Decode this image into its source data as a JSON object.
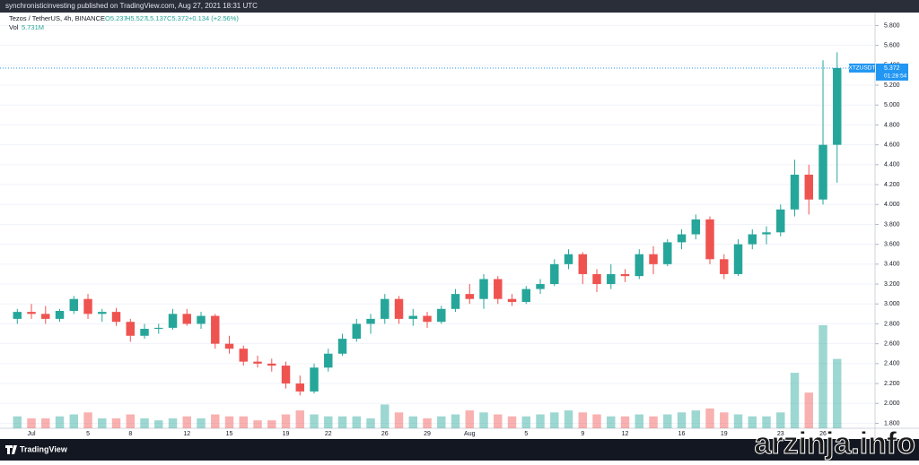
{
  "header": {
    "publisher": "synchronisticinvesting published on TradingView.com, Aug 27, 2021 18:31 UTC"
  },
  "chart_data": {
    "type": "candlestick",
    "symbol": "Tezos / TetherUS, 4h, BINANCE",
    "ohlc_legend": [
      "O5.237",
      "H5.527",
      "L5.137",
      "C5.372",
      "+0.134 (+2.56%)"
    ],
    "volume_legend": "Vol",
    "volume_value": "5.731M",
    "last_price_label": {
      "ticker": "XTZUSDT",
      "price": 5.372,
      "countdown": "01:28:54"
    },
    "categories": [
      null,
      "Jul",
      null,
      null,
      null,
      "5",
      null,
      null,
      "8",
      null,
      null,
      null,
      "12",
      null,
      null,
      "15",
      null,
      null,
      null,
      "19",
      null,
      null,
      "22",
      null,
      null,
      null,
      "26",
      null,
      null,
      "29",
      null,
      null,
      "Aug",
      null,
      null,
      null,
      "5",
      null,
      null,
      null,
      "9",
      null,
      null,
      "12",
      null,
      null,
      null,
      "16",
      null,
      null,
      "19",
      null,
      null,
      null,
      "23",
      null,
      null,
      "26",
      null
    ],
    "open": [
      2.85,
      2.92,
      2.9,
      2.85,
      2.93,
      3.05,
      2.9,
      2.92,
      2.82,
      2.68,
      2.75,
      2.76,
      2.9,
      2.8,
      2.88,
      2.6,
      2.55,
      2.42,
      2.4,
      2.38,
      2.2,
      2.12,
      2.36,
      2.5,
      2.65,
      2.8,
      2.85,
      3.05,
      2.85,
      2.88,
      2.82,
      2.95,
      3.1,
      3.05,
      3.25,
      3.05,
      3.02,
      3.15,
      3.2,
      3.4,
      3.5,
      3.3,
      3.2,
      3.3,
      3.28,
      3.5,
      3.4,
      3.62,
      3.7,
      3.85,
      3.45,
      3.3,
      3.6,
      3.7,
      3.72,
      3.95,
      4.3,
      4.05,
      4.6
    ],
    "high": [
      2.95,
      3.0,
      2.98,
      2.95,
      3.08,
      3.1,
      2.95,
      2.96,
      2.85,
      2.8,
      2.8,
      2.95,
      2.95,
      2.92,
      2.9,
      2.68,
      2.58,
      2.48,
      2.45,
      2.42,
      2.28,
      2.4,
      2.55,
      2.7,
      2.85,
      2.9,
      3.1,
      3.08,
      2.95,
      2.92,
      2.98,
      3.15,
      3.2,
      3.3,
      3.28,
      3.1,
      3.18,
      3.25,
      3.45,
      3.55,
      3.52,
      3.35,
      3.4,
      3.35,
      3.55,
      3.58,
      3.65,
      3.75,
      3.9,
      3.88,
      3.5,
      3.65,
      3.75,
      3.78,
      4.0,
      4.45,
      4.4,
      5.45,
      5.53
    ],
    "low": [
      2.8,
      2.85,
      2.8,
      2.82,
      2.9,
      2.85,
      2.82,
      2.78,
      2.62,
      2.65,
      2.7,
      2.74,
      2.78,
      2.75,
      2.55,
      2.5,
      2.38,
      2.36,
      2.32,
      2.15,
      2.08,
      2.1,
      2.32,
      2.48,
      2.62,
      2.7,
      2.8,
      2.8,
      2.78,
      2.76,
      2.8,
      2.92,
      3.0,
      2.95,
      3.0,
      2.98,
      3.0,
      3.1,
      3.18,
      3.35,
      3.2,
      3.12,
      3.15,
      3.22,
      3.25,
      3.3,
      3.38,
      3.55,
      3.65,
      3.4,
      3.25,
      3.28,
      3.55,
      3.6,
      3.68,
      3.88,
      3.9,
      4.0,
      4.22
    ],
    "close": [
      2.92,
      2.9,
      2.85,
      2.93,
      3.05,
      2.9,
      2.92,
      2.82,
      2.68,
      2.75,
      2.76,
      2.9,
      2.8,
      2.88,
      2.6,
      2.55,
      2.42,
      2.4,
      2.38,
      2.2,
      2.12,
      2.36,
      2.5,
      2.65,
      2.8,
      2.85,
      3.05,
      2.85,
      2.88,
      2.82,
      2.95,
      3.1,
      3.05,
      3.25,
      3.05,
      3.02,
      3.15,
      3.2,
      3.4,
      3.5,
      3.3,
      3.2,
      3.3,
      3.28,
      3.5,
      3.4,
      3.62,
      3.7,
      3.85,
      3.45,
      3.3,
      3.6,
      3.7,
      3.72,
      3.95,
      4.3,
      4.05,
      4.6,
      5.372
    ],
    "volume": [
      6,
      5,
      5,
      6,
      7,
      8,
      5,
      5,
      7,
      5,
      4,
      5,
      6,
      5,
      7,
      6,
      6,
      4,
      4,
      7,
      9,
      7,
      6,
      6,
      6,
      5,
      12,
      8,
      6,
      5,
      6,
      7,
      9,
      8,
      7,
      6,
      6,
      7,
      8,
      9,
      8,
      7,
      6,
      6,
      7,
      6,
      7,
      8,
      9,
      10,
      8,
      7,
      6,
      6,
      8,
      28,
      18,
      52,
      35
    ],
    "up_color": "#26a69a",
    "down_color": "#ef5350",
    "price_line_color": "#2196f3",
    "ylim": [
      1.75,
      5.93
    ],
    "yticks": [
      {
        "value": 1.8,
        "label": "1.800"
      },
      {
        "value": 2.0,
        "label": "2.000"
      },
      {
        "value": 2.2,
        "label": "2.200"
      },
      {
        "value": 2.4,
        "label": "2.400"
      },
      {
        "value": 2.6,
        "label": "2.600"
      },
      {
        "value": 2.8,
        "label": "2.800"
      },
      {
        "value": 3.0,
        "label": "3.000"
      },
      {
        "value": 3.2,
        "label": "3.200"
      },
      {
        "value": 3.4,
        "label": "3.400"
      },
      {
        "value": 3.6,
        "label": "3.600"
      },
      {
        "value": 3.8,
        "label": "3.800"
      },
      {
        "value": 4.0,
        "label": "4.000"
      },
      {
        "value": 4.2,
        "label": "4.200"
      },
      {
        "value": 4.4,
        "label": "4.400"
      },
      {
        "value": 4.6,
        "label": "4.600"
      },
      {
        "value": 4.8,
        "label": "4.800"
      },
      {
        "value": 5.0,
        "label": "5.000"
      },
      {
        "value": 5.2,
        "label": "5.200"
      },
      {
        "value": 5.4,
        "label": "5.400"
      },
      {
        "value": 5.6,
        "label": "5.600"
      },
      {
        "value": 5.8,
        "label": "5.800"
      }
    ]
  },
  "footer": {
    "brand": "TradingView",
    "watermark": "arzinja.info"
  }
}
